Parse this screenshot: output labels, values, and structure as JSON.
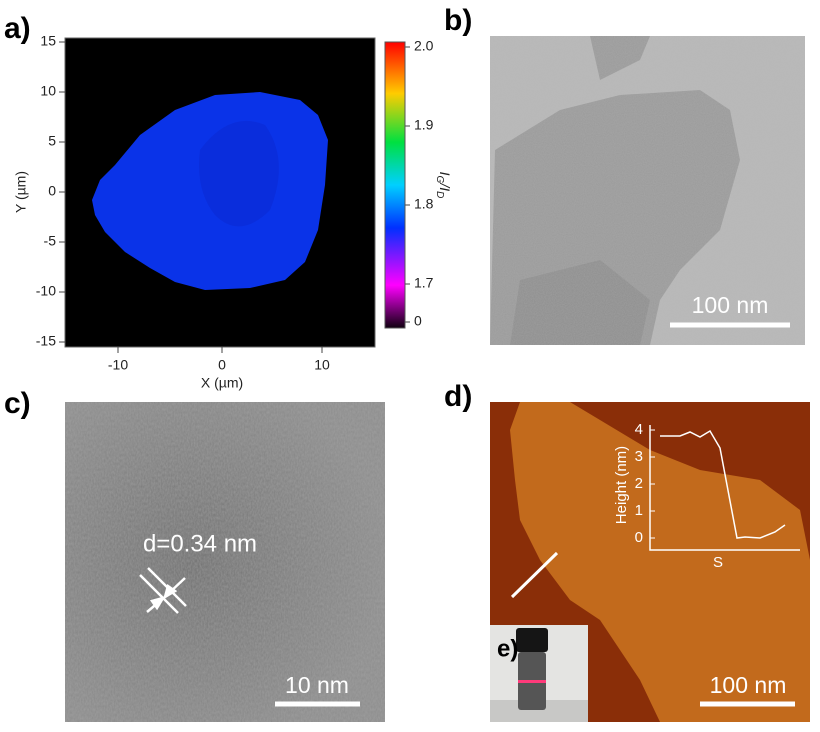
{
  "panels": {
    "a": {
      "label": "a)",
      "x_label": "X (µm)",
      "y_label": "Y (µm)",
      "xticks": [
        "-10",
        "0",
        "10"
      ],
      "yticks": [
        "15",
        "10",
        "5",
        "0",
        "-5",
        "-10",
        "-15"
      ],
      "colorbar_ticks": [
        "2.0",
        "1.9",
        "1.8",
        "1.7",
        "0"
      ],
      "colorbar_label": [
        "I",
        "G",
        "/I",
        "D"
      ]
    },
    "b": {
      "label": "b)",
      "scale_bar": "100 nm"
    },
    "c": {
      "label": "c)",
      "annotation": "d=0.34 nm",
      "scale_bar": "10 nm"
    },
    "d": {
      "label": "d)",
      "scale_bar": "100 nm",
      "inset": {
        "y_label": "Height (nm)",
        "x_label": "S",
        "yticks": [
          "4",
          "3",
          "2",
          "1",
          "0"
        ]
      }
    },
    "e": {
      "label": "e)"
    }
  }
}
